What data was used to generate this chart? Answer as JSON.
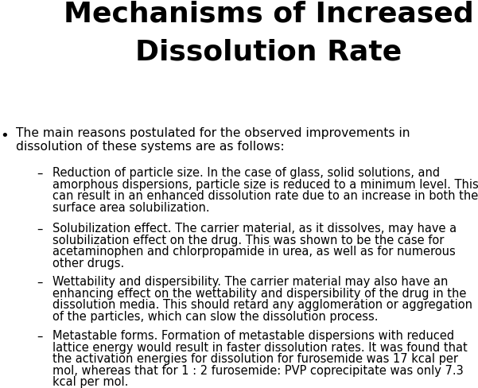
{
  "title_line1": "Mechanisms of Increased",
  "title_line2": "Dissolution Rate",
  "background_color": "#ffffff",
  "text_color": "#000000",
  "bullet_text_line1": "The main reasons postulated for the observed improvements in",
  "bullet_text_line2": "dissolution of these systems are as follows:",
  "sub_bullets": [
    [
      "Reduction of particle size. In the case of glass, solid solutions, and",
      "amorphous dispersions, particle size is reduced to a minimum level. This",
      "can result in an enhanced dissolution rate due to an increase in both the",
      "surface area solubilization."
    ],
    [
      "Solubilization effect. The carrier material, as it dissolves, may have a",
      "solubilization effect on the drug. This was shown to be the case for",
      "acetaminophen and chlorpropamide in urea, as well as for numerous",
      "other drugs."
    ],
    [
      "Wettability and dispersibility. The carrier material may also have an",
      "enhancing effect on the wettability and dispersibility of the drug in the",
      "dissolution media. This should retard any agglomeration or aggregation",
      "of the particles, which can slow the dissolution process."
    ],
    [
      "Metastable forms. Formation of metastable dispersions with reduced",
      "lattice energy would result in faster dissolution rates. It was found that",
      "the activation energies for dissolution for furosemide was 17 kcal per",
      "mol, whereas that for 1 : 2 furosemide: PVP coprecipitate was only 7.3",
      "kcal per mol."
    ]
  ],
  "title_fontsize": 26,
  "bullet_fontsize": 11.2,
  "sub_bullet_fontsize": 10.5
}
